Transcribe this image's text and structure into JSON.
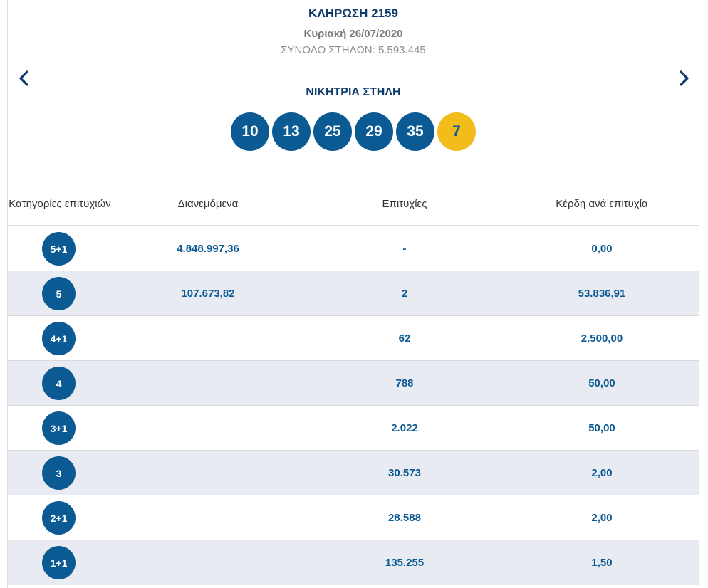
{
  "header": {
    "draw_title": "ΚΛΗΡΩΣΗ 2159",
    "draw_date": "Κυριακή 26/07/2020",
    "total_columns": "ΣΥΝΟΛΟ ΣΤΗΛΩΝ: 5.593.445",
    "prev_icon": "chevron-left-icon",
    "next_icon": "chevron-right-icon"
  },
  "winning": {
    "label": "ΝΙΚΗΤΡΙΑ ΣΤΗΛΗ",
    "numbers": [
      "10",
      "13",
      "25",
      "29",
      "35"
    ],
    "joker": "7"
  },
  "table": {
    "headers": {
      "category": "Κατηγορίες επιτυχιών",
      "distributed": "Διανεμόμενα",
      "winners": "Επιτυχίες",
      "prize": "Κέρδη ανά επιτυχία"
    },
    "rows": [
      {
        "category": "5+1",
        "distributed": "4.848.997,36",
        "winners": "-",
        "prize": "0,00"
      },
      {
        "category": "5",
        "distributed": "107.673,82",
        "winners": "2",
        "prize": "53.836,91"
      },
      {
        "category": "4+1",
        "distributed": "",
        "winners": "62",
        "prize": "2.500,00"
      },
      {
        "category": "4",
        "distributed": "",
        "winners": "788",
        "prize": "50,00"
      },
      {
        "category": "3+1",
        "distributed": "",
        "winners": "2.022",
        "prize": "50,00"
      },
      {
        "category": "3",
        "distributed": "",
        "winners": "30.573",
        "prize": "2,00"
      },
      {
        "category": "2+1",
        "distributed": "",
        "winners": "28.588",
        "prize": "2,00"
      },
      {
        "category": "1+1",
        "distributed": "",
        "winners": "135.255",
        "prize": "1,50"
      }
    ]
  },
  "colors": {
    "primary_blue": "#0b5a93",
    "title_navy": "#0d3a6b",
    "joker_yellow": "#f2bc1b",
    "row_alt_bg": "#e9ebf2"
  }
}
